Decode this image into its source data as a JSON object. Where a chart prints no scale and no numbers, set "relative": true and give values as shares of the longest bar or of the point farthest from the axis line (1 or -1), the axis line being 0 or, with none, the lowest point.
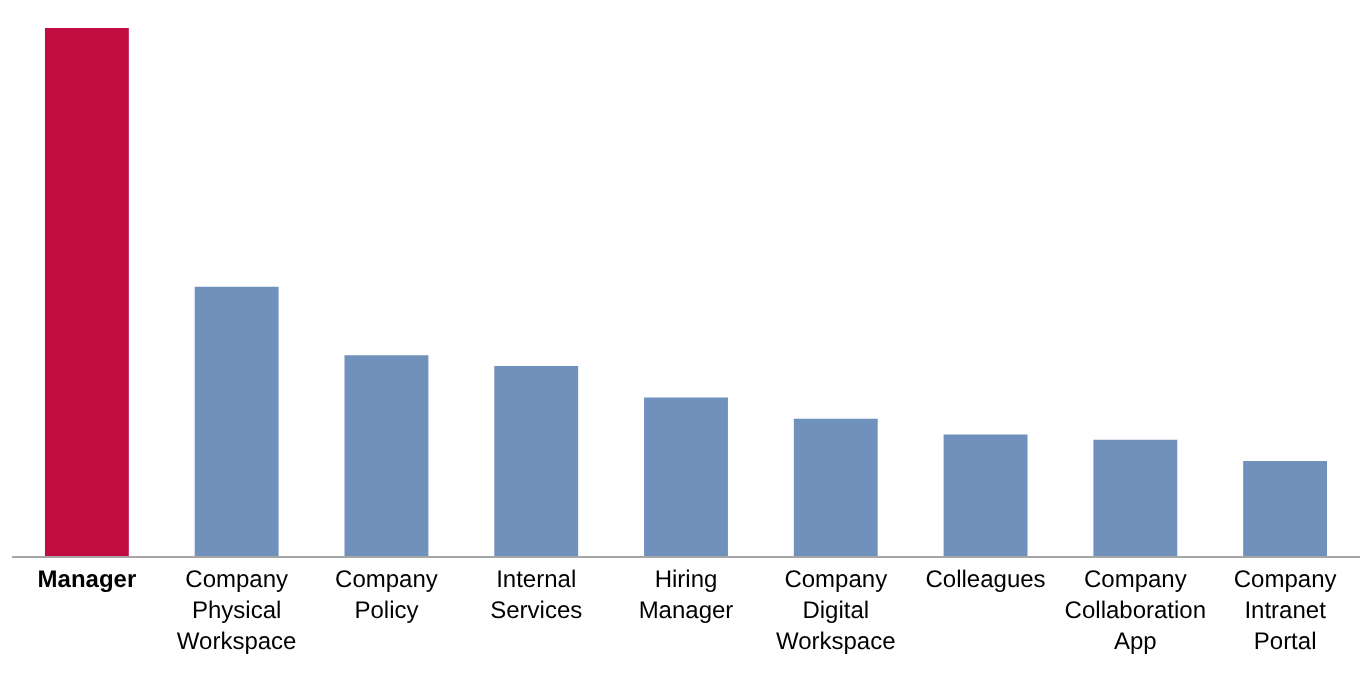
{
  "chart_data": {
    "type": "bar",
    "relative": true,
    "categories": [
      "Manager",
      "Company\nPhysical\nWorkspace",
      "Company\nPolicy",
      "Internal\nServices",
      "Hiring\nManager",
      "Company\nDigital\nWorkspace",
      "Colleagues",
      "Company\nCollaboration\nApp",
      "Company\nIntranet\nPortal"
    ],
    "values": [
      1,
      0.51,
      0.38,
      0.36,
      0.3,
      0.26,
      0.23,
      0.22,
      0.18
    ],
    "colors": [
      "#c00c3f",
      "#7191bd",
      "#7191bd",
      "#7191bd",
      "#7191bd",
      "#7191bd",
      "#7191bd",
      "#7191bd",
      "#7191bd"
    ],
    "grid": false,
    "legend": false
  }
}
